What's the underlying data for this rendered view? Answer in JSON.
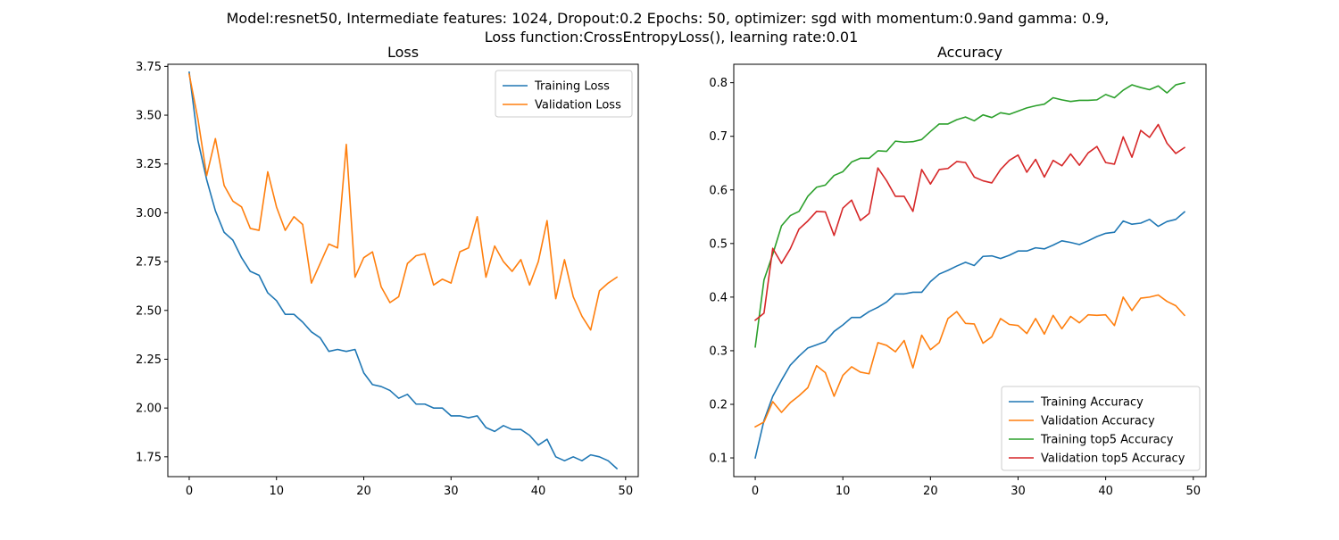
{
  "figure": {
    "suptitle_line1": "Model:resnet50, Intermediate features: 1024, Dropout:0.2 Epochs: 50, optimizer: sgd with momentum:0.9and gamma: 0.9,",
    "suptitle_line2": "Loss function:CrossEntropyLoss(), learning rate:0.01"
  },
  "colors": {
    "blue": "#1f77b4",
    "orange": "#ff7f0e",
    "green": "#2ca02c",
    "red": "#d62728"
  },
  "chart_data": [
    {
      "type": "line",
      "title": "Loss",
      "xlabel": "",
      "ylabel": "",
      "xlim": [
        -2.45,
        51.45
      ],
      "ylim": [
        1.6486,
        3.7608
      ],
      "xticks": [
        0,
        10,
        20,
        30,
        40,
        50
      ],
      "yticks": [
        1.75,
        2.0,
        2.25,
        2.5,
        2.75,
        3.0,
        3.25,
        3.5,
        3.75
      ],
      "ytick_labels": [
        "1.75",
        "2.00",
        "2.25",
        "2.50",
        "2.75",
        "3.00",
        "3.25",
        "3.50",
        "3.75"
      ],
      "grid": false,
      "legend_position": "upper right",
      "series": [
        {
          "name": "Training Loss",
          "color": "#1f77b4",
          "x": [
            0,
            1,
            2,
            3,
            4,
            5,
            6,
            7,
            8,
            9,
            10,
            11,
            12,
            13,
            14,
            15,
            16,
            17,
            18,
            19,
            20,
            21,
            22,
            23,
            24,
            25,
            26,
            27,
            28,
            29,
            30,
            31,
            32,
            33,
            34,
            35,
            36,
            37,
            38,
            39,
            40,
            41,
            42,
            43,
            44,
            45,
            46,
            47,
            48,
            49
          ],
          "values": [
            3.72,
            3.37,
            3.17,
            3.01,
            2.9,
            2.86,
            2.77,
            2.7,
            2.68,
            2.59,
            2.55,
            2.48,
            2.48,
            2.44,
            2.39,
            2.36,
            2.29,
            2.3,
            2.29,
            2.3,
            2.18,
            2.12,
            2.11,
            2.09,
            2.05,
            2.07,
            2.02,
            2.02,
            2.0,
            2.0,
            1.96,
            1.96,
            1.95,
            1.96,
            1.9,
            1.88,
            1.91,
            1.89,
            1.89,
            1.86,
            1.81,
            1.84,
            1.75,
            1.73,
            1.75,
            1.73,
            1.76,
            1.75,
            1.73,
            1.69
          ]
        },
        {
          "name": "Validation Loss",
          "color": "#ff7f0e",
          "x": [
            0,
            1,
            2,
            3,
            4,
            5,
            6,
            7,
            8,
            9,
            10,
            11,
            12,
            13,
            14,
            15,
            16,
            17,
            18,
            19,
            20,
            21,
            22,
            23,
            24,
            25,
            26,
            27,
            28,
            29,
            30,
            31,
            32,
            33,
            34,
            35,
            36,
            37,
            38,
            39,
            40,
            41,
            42,
            43,
            44,
            45,
            46,
            47,
            48,
            49
          ],
          "values": [
            3.71,
            3.48,
            3.19,
            3.38,
            3.14,
            3.06,
            3.03,
            2.92,
            2.91,
            3.21,
            3.03,
            2.91,
            2.98,
            2.94,
            2.64,
            2.74,
            2.84,
            2.82,
            3.35,
            2.67,
            2.77,
            2.8,
            2.62,
            2.54,
            2.57,
            2.74,
            2.78,
            2.79,
            2.63,
            2.66,
            2.64,
            2.8,
            2.82,
            2.98,
            2.67,
            2.83,
            2.75,
            2.7,
            2.76,
            2.63,
            2.75,
            2.96,
            2.56,
            2.76,
            2.57,
            2.47,
            2.4,
            2.6,
            2.64,
            2.67
          ]
        }
      ]
    },
    {
      "type": "line",
      "title": "Accuracy",
      "xlabel": "",
      "ylabel": "",
      "xlim": [
        -2.45,
        51.45
      ],
      "ylim": [
        0.0651,
        0.8344
      ],
      "xticks": [
        0,
        10,
        20,
        30,
        40,
        50
      ],
      "yticks": [
        0.1,
        0.2,
        0.3,
        0.4,
        0.5,
        0.6,
        0.7,
        0.8
      ],
      "ytick_labels": [
        "0.1",
        "0.2",
        "0.3",
        "0.4",
        "0.5",
        "0.6",
        "0.7",
        "0.8"
      ],
      "grid": false,
      "legend_position": "lower right",
      "series": [
        {
          "name": "Training Accuracy",
          "color": "#1f77b4",
          "x": [
            0,
            1,
            2,
            3,
            4,
            5,
            6,
            7,
            8,
            9,
            10,
            11,
            12,
            13,
            14,
            15,
            16,
            17,
            18,
            19,
            20,
            21,
            22,
            23,
            24,
            25,
            26,
            27,
            28,
            29,
            30,
            31,
            32,
            33,
            34,
            35,
            36,
            37,
            38,
            39,
            40,
            41,
            42,
            43,
            44,
            45,
            46,
            47,
            48,
            49
          ],
          "values": [
            0.1,
            0.17,
            0.215,
            0.245,
            0.273,
            0.29,
            0.305,
            0.311,
            0.317,
            0.336,
            0.348,
            0.362,
            0.362,
            0.373,
            0.381,
            0.391,
            0.406,
            0.406,
            0.409,
            0.409,
            0.429,
            0.443,
            0.45,
            0.458,
            0.465,
            0.459,
            0.476,
            0.477,
            0.472,
            0.478,
            0.486,
            0.486,
            0.492,
            0.49,
            0.497,
            0.505,
            0.502,
            0.498,
            0.505,
            0.513,
            0.519,
            0.521,
            0.542,
            0.536,
            0.538,
            0.545,
            0.532,
            0.541,
            0.545,
            0.559
          ]
        },
        {
          "name": "Validation Accuracy",
          "color": "#ff7f0e",
          "x": [
            0,
            1,
            2,
            3,
            4,
            5,
            6,
            7,
            8,
            9,
            10,
            11,
            12,
            13,
            14,
            15,
            16,
            17,
            18,
            19,
            20,
            21,
            22,
            23,
            24,
            25,
            26,
            27,
            28,
            29,
            30,
            31,
            32,
            33,
            34,
            35,
            36,
            37,
            38,
            39,
            40,
            41,
            42,
            43,
            44,
            45,
            46,
            47,
            48,
            49
          ],
          "values": [
            0.158,
            0.167,
            0.205,
            0.185,
            0.203,
            0.216,
            0.231,
            0.272,
            0.259,
            0.215,
            0.254,
            0.27,
            0.26,
            0.257,
            0.315,
            0.31,
            0.298,
            0.319,
            0.268,
            0.329,
            0.302,
            0.315,
            0.36,
            0.373,
            0.351,
            0.35,
            0.314,
            0.326,
            0.36,
            0.349,
            0.347,
            0.332,
            0.36,
            0.331,
            0.366,
            0.341,
            0.364,
            0.352,
            0.367,
            0.366,
            0.367,
            0.347,
            0.4,
            0.375,
            0.398,
            0.4,
            0.404,
            0.392,
            0.384,
            0.366
          ]
        },
        {
          "name": "Training top5 Accuracy",
          "color": "#2ca02c",
          "x": [
            0,
            1,
            2,
            3,
            4,
            5,
            6,
            7,
            8,
            9,
            10,
            11,
            12,
            13,
            14,
            15,
            16,
            17,
            18,
            19,
            20,
            21,
            22,
            23,
            24,
            25,
            26,
            27,
            28,
            29,
            30,
            31,
            32,
            33,
            34,
            35,
            36,
            37,
            38,
            39,
            40,
            41,
            42,
            43,
            44,
            45,
            46,
            47,
            48,
            49
          ],
          "values": [
            0.307,
            0.432,
            0.48,
            0.533,
            0.552,
            0.56,
            0.588,
            0.605,
            0.609,
            0.627,
            0.634,
            0.652,
            0.659,
            0.659,
            0.673,
            0.672,
            0.691,
            0.689,
            0.69,
            0.694,
            0.709,
            0.723,
            0.723,
            0.731,
            0.736,
            0.729,
            0.74,
            0.735,
            0.744,
            0.741,
            0.747,
            0.753,
            0.757,
            0.76,
            0.772,
            0.768,
            0.765,
            0.767,
            0.767,
            0.768,
            0.778,
            0.772,
            0.786,
            0.796,
            0.791,
            0.787,
            0.794,
            0.781,
            0.796,
            0.8
          ]
        },
        {
          "name": "Validation top5 Accuracy",
          "color": "#d62728",
          "x": [
            0,
            1,
            2,
            3,
            4,
            5,
            6,
            7,
            8,
            9,
            10,
            11,
            12,
            13,
            14,
            15,
            16,
            17,
            18,
            19,
            20,
            21,
            22,
            23,
            24,
            25,
            26,
            27,
            28,
            29,
            30,
            31,
            32,
            33,
            34,
            35,
            36,
            37,
            38,
            39,
            40,
            41,
            42,
            43,
            44,
            45,
            46,
            47,
            48,
            49
          ],
          "values": [
            0.357,
            0.37,
            0.491,
            0.463,
            0.49,
            0.527,
            0.542,
            0.56,
            0.559,
            0.515,
            0.566,
            0.581,
            0.543,
            0.556,
            0.641,
            0.617,
            0.588,
            0.588,
            0.56,
            0.638,
            0.611,
            0.638,
            0.64,
            0.653,
            0.651,
            0.624,
            0.617,
            0.613,
            0.638,
            0.655,
            0.665,
            0.633,
            0.657,
            0.624,
            0.655,
            0.645,
            0.667,
            0.646,
            0.669,
            0.681,
            0.651,
            0.648,
            0.699,
            0.661,
            0.711,
            0.698,
            0.722,
            0.687,
            0.668,
            0.679
          ]
        }
      ]
    }
  ]
}
